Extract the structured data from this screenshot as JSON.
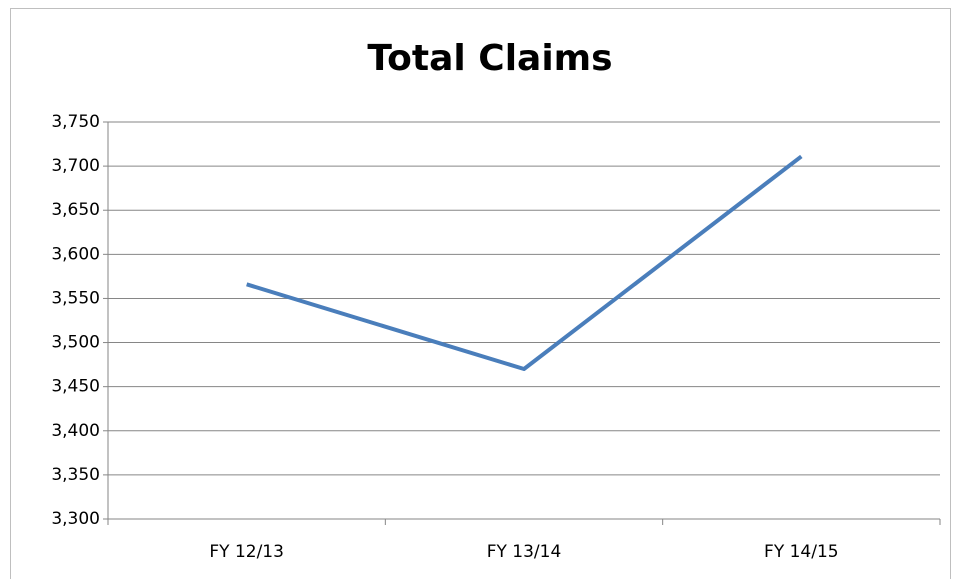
{
  "chart_data": {
    "type": "line",
    "title": "Total Claims",
    "categories": [
      "FY 12/13",
      "FY 13/14",
      "FY 14/15"
    ],
    "series": [
      {
        "name": "Total Claims",
        "color": "#4a7ebb",
        "values": [
          3566,
          3470,
          3711
        ]
      }
    ],
    "ylim": [
      3300,
      3750
    ],
    "yticks": [
      {
        "value": 3300,
        "label": "3,300"
      },
      {
        "value": 3350,
        "label": "3,350"
      },
      {
        "value": 3400,
        "label": "3,400"
      },
      {
        "value": 3450,
        "label": "3,450"
      },
      {
        "value": 3500,
        "label": "3,500"
      },
      {
        "value": 3550,
        "label": "3,550"
      },
      {
        "value": 3600,
        "label": "3,600"
      },
      {
        "value": 3650,
        "label": "3,650"
      },
      {
        "value": 3700,
        "label": "3,700"
      },
      {
        "value": 3750,
        "label": "3,750"
      }
    ],
    "grid": true,
    "legend": false
  }
}
